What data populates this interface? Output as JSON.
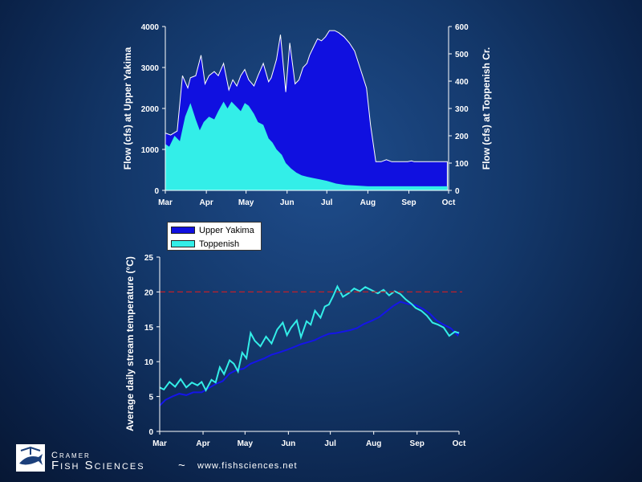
{
  "chart_data": [
    {
      "type": "area",
      "xlabel": "",
      "ylabel": "Flow (cfs) at Upper Yakima",
      "y2label": "Flow (cfs) at Toppenish Cr.",
      "ylim": [
        0,
        4000
      ],
      "y2lim": [
        0,
        600
      ],
      "x_tick_labels": [
        "Mar",
        "Apr",
        "May",
        "Jun",
        "Jul",
        "Aug",
        "Sep",
        "Oct"
      ],
      "y_tick_labels": [
        "0",
        "1000",
        "2000",
        "3000",
        "4000"
      ],
      "y2_tick_labels": [
        "0",
        "100",
        "200",
        "300",
        "400",
        "500",
        "600"
      ],
      "legend": [
        "Upper Yakima",
        "Toppenish"
      ],
      "legend_position": "below",
      "series": [
        {
          "name": "Upper Yakima",
          "axis": "left",
          "color": "#1010e0",
          "x": [
            "Mar 1",
            "Mar 5",
            "Mar 10",
            "Mar 14",
            "Mar 18",
            "Mar 20",
            "Mar 24",
            "Mar 28",
            "Mar 31",
            "Apr 3",
            "Apr 7",
            "Apr 10",
            "Apr 14",
            "Apr 18",
            "Apr 21",
            "Apr 24",
            "Apr 27",
            "Apr 30",
            "May 3",
            "May 7",
            "May 10",
            "May 14",
            "May 18",
            "May 20",
            "May 24",
            "May 27",
            "May 31",
            "Jun 3",
            "Jun 7",
            "Jun 10",
            "Jun 13",
            "Jun 16",
            "Jun 18",
            "Jun 21",
            "Jun 24",
            "Jun 27",
            "Jun 30",
            "Jul 3",
            "Jul 7",
            "Jul 10",
            "Jul 14",
            "Jul 18",
            "Jul 22",
            "Jul 26",
            "Jul 31",
            "Aug 3",
            "Aug 7",
            "Aug 11",
            "Aug 15",
            "Aug 19",
            "Aug 23",
            "Aug 27",
            "Aug 31",
            "Sep 3",
            "Sep 5",
            "Sep 8",
            "Sep 11",
            "Sep 14",
            "Sep 17",
            "Sep 21",
            "Sep 25",
            "Sep 30"
          ],
          "values": [
            1400,
            1350,
            1450,
            2800,
            2500,
            2750,
            2800,
            3300,
            2600,
            2800,
            2900,
            2800,
            3100,
            2450,
            2700,
            2550,
            2800,
            2950,
            2700,
            2550,
            2800,
            3100,
            2650,
            2750,
            3200,
            3800,
            2400,
            3600,
            2600,
            2700,
            3000,
            3100,
            3300,
            3500,
            3700,
            3650,
            3750,
            3900,
            3900,
            3850,
            3750,
            3600,
            3400,
            3000,
            2500,
            1600,
            700,
            700,
            750,
            700,
            700,
            700,
            700,
            720,
            700,
            700,
            700,
            700,
            700,
            700,
            700,
            700
          ],
          "note_x_range": "Mar 1 to Sep 30"
        },
        {
          "name": "Toppenish",
          "axis": "right",
          "color": "#33eee8",
          "x": [
            "Mar 1",
            "Mar 4",
            "Mar 8",
            "Mar 12",
            "Mar 16",
            "Mar 20",
            "Mar 24",
            "Mar 27",
            "Mar 30",
            "Apr 3",
            "Apr 7",
            "Apr 10",
            "Apr 14",
            "Apr 17",
            "Apr 20",
            "Apr 24",
            "Apr 27",
            "Apr 30",
            "May 3",
            "May 7",
            "May 10",
            "May 14",
            "May 18",
            "May 21",
            "May 24",
            "May 28",
            "May 31",
            "Jun 4",
            "Jun 8",
            "Jun 12",
            "Jun 16",
            "Jun 21",
            "Jun 26",
            "Jul 1",
            "Jul 8",
            "Jul 15",
            "Jul 22",
            "Aug 1",
            "Aug 15",
            "Sep 1",
            "Sep 15",
            "Sep 30"
          ],
          "values": [
            170,
            160,
            200,
            180,
            270,
            320,
            260,
            220,
            250,
            270,
            260,
            290,
            325,
            300,
            325,
            305,
            290,
            320,
            310,
            280,
            250,
            240,
            190,
            175,
            150,
            130,
            100,
            80,
            65,
            55,
            50,
            45,
            40,
            35,
            25,
            20,
            18,
            15,
            15,
            15,
            15,
            15
          ]
        }
      ]
    },
    {
      "type": "line",
      "xlabel": "",
      "ylabel": "Average daily stream temperature (°C)",
      "ylim": [
        0,
        25
      ],
      "x_tick_labels": [
        "Mar",
        "Apr",
        "May",
        "Jun",
        "Jul",
        "Aug",
        "Sep",
        "Oct"
      ],
      "y_tick_labels": [
        "0",
        "5",
        "10",
        "15",
        "20",
        "25"
      ],
      "reference_line": {
        "y": 20,
        "style": "dashed",
        "color": "#c0202a"
      },
      "series": [
        {
          "name": "Upper Yakima",
          "color": "#1515e8",
          "x": [
            "Mar 1",
            "Mar 5",
            "Mar 10",
            "Mar 15",
            "Mar 20",
            "Mar 25",
            "Mar 31",
            "Apr 5",
            "Apr 10",
            "Apr 15",
            "Apr 20",
            "Apr 25",
            "Apr 30",
            "May 5",
            "May 10",
            "May 15",
            "May 20",
            "May 25",
            "May 31",
            "Jun 5",
            "Jun 10",
            "Jun 15",
            "Jun 20",
            "Jun 25",
            "Jun 30",
            "Jul 5",
            "Jul 10",
            "Jul 15",
            "Jul 20",
            "Jul 25",
            "Jul 31",
            "Aug 5",
            "Aug 10",
            "Aug 15",
            "Aug 20",
            "Aug 25",
            "Aug 31",
            "Sep 5",
            "Sep 10",
            "Sep 15",
            "Sep 20",
            "Sep 25",
            "Sep 30",
            "Oct 1"
          ],
          "values": [
            3.7,
            4.5,
            5.0,
            5.4,
            5.2,
            5.6,
            5.6,
            6.2,
            6.8,
            7.2,
            8.3,
            8.8,
            9.0,
            9.7,
            10.1,
            10.5,
            11.0,
            11.3,
            11.7,
            12.1,
            12.5,
            12.8,
            13.1,
            13.6,
            14.0,
            14.1,
            14.3,
            14.5,
            14.8,
            15.4,
            15.9,
            16.4,
            17.2,
            18.0,
            18.6,
            18.3,
            18.1,
            17.6,
            16.9,
            15.9,
            15.3,
            14.8,
            13.8,
            14.3
          ]
        },
        {
          "name": "Toppenish",
          "color": "#33eee8",
          "x": [
            "Mar 1",
            "Mar 4",
            "Mar 8",
            "Mar 12",
            "Mar 16",
            "Mar 20",
            "Mar 24",
            "Mar 28",
            "Mar 31",
            "Apr 3",
            "Apr 7",
            "Apr 10",
            "Apr 13",
            "Apr 16",
            "Apr 20",
            "Apr 23",
            "Apr 26",
            "Apr 29",
            "May 2",
            "May 5",
            "May 8",
            "May 12",
            "May 16",
            "May 20",
            "May 24",
            "May 28",
            "May 31",
            "Jun 3",
            "Jun 7",
            "Jun 10",
            "Jun 14",
            "Jun 17",
            "Jun 20",
            "Jun 24",
            "Jun 27",
            "Jun 30",
            "Jul 3",
            "Jul 6",
            "Jul 10",
            "Jul 14",
            "Jul 18",
            "Jul 22",
            "Jul 26",
            "Jul 31",
            "Aug 4",
            "Aug 8",
            "Aug 12",
            "Aug 16",
            "Aug 20",
            "Aug 24",
            "Aug 28",
            "Aug 31",
            "Sep 4",
            "Sep 8",
            "Sep 12",
            "Sep 16",
            "Sep 20",
            "Sep 24",
            "Sep 28",
            "Oct 1"
          ],
          "values": [
            6.3,
            6.0,
            7.1,
            6.4,
            7.5,
            6.3,
            7.0,
            6.6,
            7.1,
            5.9,
            7.4,
            7.0,
            9.2,
            8.2,
            10.2,
            9.7,
            8.6,
            11.3,
            10.5,
            14.1,
            13.0,
            12.2,
            13.6,
            12.6,
            14.6,
            15.6,
            13.8,
            14.9,
            15.9,
            13.5,
            15.8,
            15.3,
            17.3,
            16.3,
            17.9,
            18.2,
            19.4,
            20.8,
            19.3,
            19.8,
            20.5,
            20.1,
            20.7,
            20.2,
            19.8,
            20.3,
            19.5,
            20.1,
            19.7,
            18.9,
            18.3,
            17.7,
            17.3,
            16.6,
            15.6,
            15.3,
            14.9,
            13.7,
            14.3,
            14.1
          ]
        }
      ]
    }
  ],
  "branding": {
    "line1": "Cramer",
    "line2": "Fish Sciences",
    "separator": "~",
    "url": "www.fishsciences.net"
  }
}
